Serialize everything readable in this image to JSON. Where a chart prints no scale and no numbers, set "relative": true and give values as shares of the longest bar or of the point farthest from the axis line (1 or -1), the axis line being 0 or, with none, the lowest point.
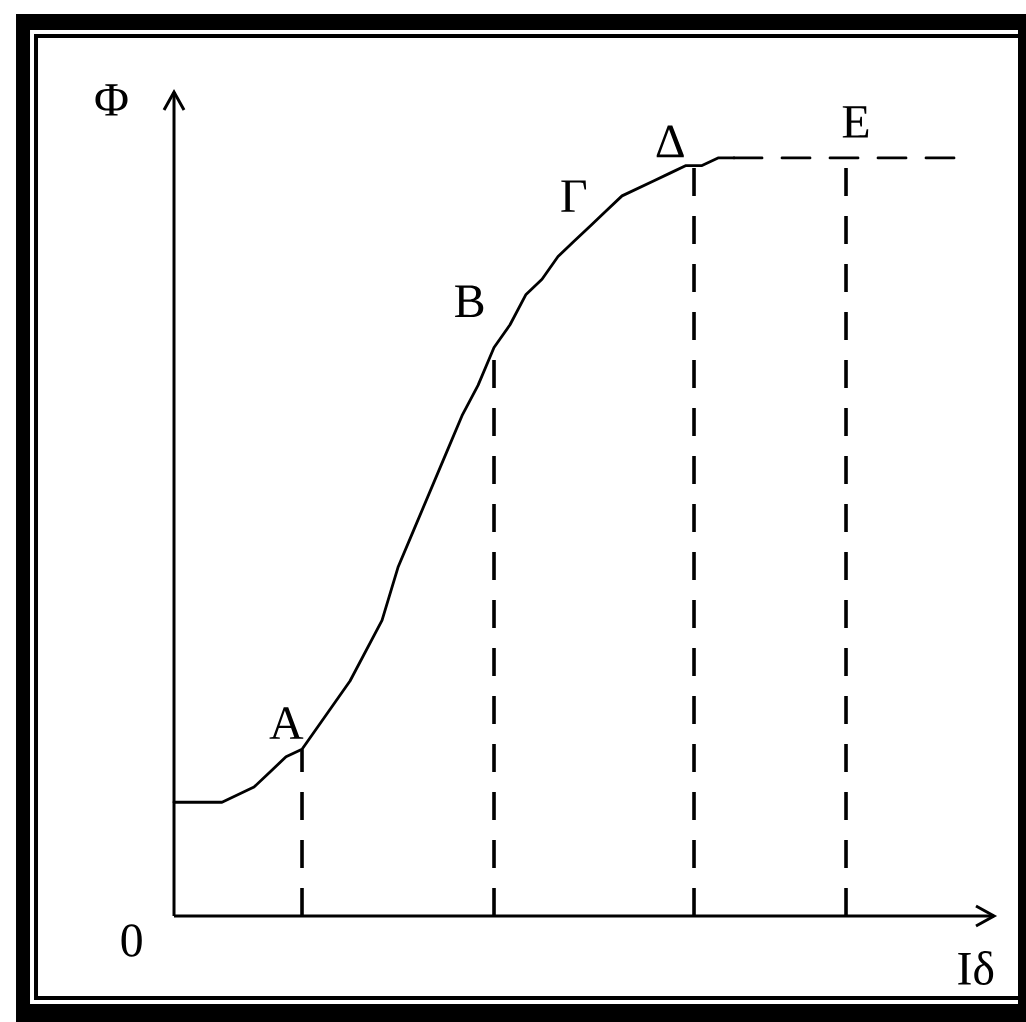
{
  "chart_data": {
    "type": "line",
    "xlabel": "Iδ",
    "ylabel": "Φ",
    "relative": true,
    "categories": [
      null,
      null,
      null,
      null,
      null,
      null,
      null,
      null,
      null,
      null,
      null,
      null,
      null,
      null,
      null,
      null,
      null,
      null,
      null,
      null,
      null,
      null,
      null,
      null,
      null,
      null,
      null,
      null,
      null,
      null,
      null,
      null,
      null,
      null,
      null,
      null,
      null,
      null,
      null,
      null,
      null,
      null,
      null,
      null,
      null,
      null,
      null,
      null,
      null,
      null
    ],
    "series": [
      {
        "color": "#000000",
        "line_style": "solid",
        "values": [
          0.15,
          0.15,
          0.15,
          0.15,
          0.16,
          0.17,
          0.19,
          0.21,
          0.22,
          0.25,
          0.28,
          0.31,
          0.35,
          0.39,
          0.46,
          0.51,
          0.56,
          0.61,
          0.66,
          0.7,
          0.75,
          0.78,
          0.82,
          0.84,
          0.87,
          0.89,
          0.91,
          0.93,
          0.95,
          0.96,
          0.97,
          0.98,
          0.99,
          0.99,
          1.0,
          1.0,
          null,
          null,
          null,
          null,
          null,
          null,
          null,
          null,
          null,
          null,
          null,
          null,
          null,
          null
        ]
      },
      {
        "color": "#000000",
        "line_style": "dashed",
        "values": [
          null,
          null,
          null,
          null,
          null,
          null,
          null,
          null,
          null,
          null,
          null,
          null,
          null,
          null,
          null,
          null,
          null,
          null,
          null,
          null,
          null,
          null,
          null,
          null,
          null,
          null,
          null,
          null,
          null,
          null,
          null,
          null,
          null,
          null,
          null,
          1.0,
          1.0,
          1.0,
          1.0,
          1.0,
          1.0,
          1.0,
          1.0,
          1.0,
          1.0,
          1.0,
          1.0,
          1.0,
          1.0,
          1.0
        ]
      }
    ],
    "annotations": [
      "0",
      "A",
      "B",
      "Γ",
      "Δ",
      "E"
    ]
  }
}
